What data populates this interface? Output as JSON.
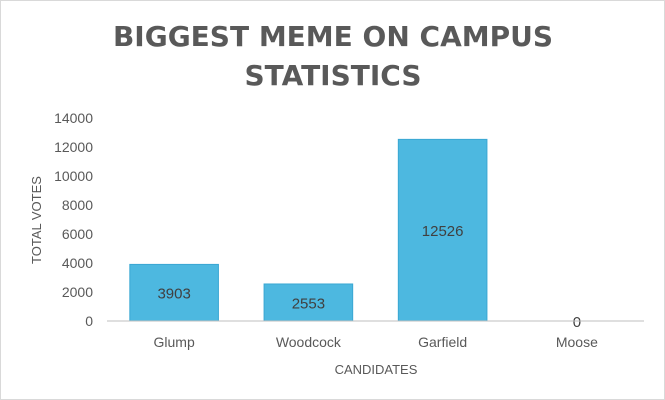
{
  "chart_data": {
    "type": "bar",
    "title_lines": [
      "BIGGEST MEME ON CAMPUS",
      "STATISTICS"
    ],
    "xlabel": "CANDIDATES",
    "ylabel": "TOTAL VOTES",
    "categories": [
      "Glump",
      "Woodcock",
      "Garfield",
      "Moose"
    ],
    "values": [
      3903,
      2553,
      12526,
      0
    ],
    "data_labels": [
      "3903",
      "2553",
      "12526",
      "0"
    ],
    "ylim": [
      0,
      14000
    ],
    "yticks": [
      0,
      2000,
      4000,
      6000,
      8000,
      10000,
      12000,
      14000
    ],
    "ytick_labels": [
      "0",
      "2000",
      "4000",
      "6000",
      "8000",
      "10000",
      "12000",
      "14000"
    ],
    "grid": false,
    "legend": "none",
    "bar_color": "#4db8e0",
    "bar_edge_color": "#3aa7d3",
    "axis_color": "#bfbfbf",
    "text_color": "#595959"
  }
}
